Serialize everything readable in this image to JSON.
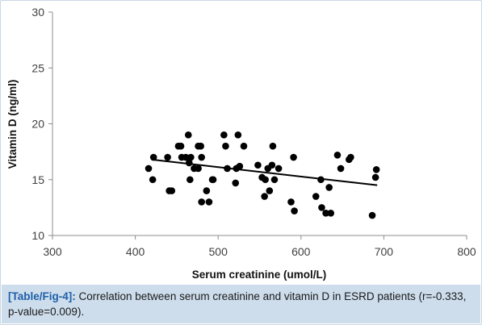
{
  "chart_data": {
    "type": "scatter",
    "xlabel": "Serum creatinine (umol/L)",
    "ylabel": "Vitamin D (ng/ml)",
    "xlim": [
      300,
      800
    ],
    "ylim": [
      10,
      30
    ],
    "x_ticks": [
      300,
      400,
      500,
      600,
      700,
      800
    ],
    "y_ticks": [
      10,
      15,
      20,
      25,
      30
    ],
    "grid": false,
    "legend": "none",
    "marker_color": "#000000",
    "trendline": {
      "type": "linear",
      "from": [
        420,
        16.8
      ],
      "to": [
        692,
        14.5
      ]
    },
    "points": [
      [
        416,
        16.0
      ],
      [
        421,
        15.0
      ],
      [
        422,
        17.0
      ],
      [
        439,
        17.0
      ],
      [
        441,
        14.0
      ],
      [
        444,
        14.0
      ],
      [
        452,
        18.0
      ],
      [
        455,
        18.0
      ],
      [
        456,
        17.0
      ],
      [
        461,
        17.0
      ],
      [
        464,
        19.0
      ],
      [
        465,
        16.5
      ],
      [
        466,
        15.0
      ],
      [
        467,
        17.0
      ],
      [
        471,
        16.0
      ],
      [
        476,
        18.0
      ],
      [
        476,
        16.0
      ],
      [
        479,
        18.0
      ],
      [
        480,
        17.0
      ],
      [
        480,
        13.0
      ],
      [
        486,
        14.0
      ],
      [
        489,
        13.0
      ],
      [
        493,
        15.0
      ],
      [
        494,
        15.0
      ],
      [
        507,
        19.0
      ],
      [
        509,
        18.0
      ],
      [
        511,
        16.0
      ],
      [
        521,
        14.7
      ],
      [
        522,
        16.0
      ],
      [
        524,
        19.0
      ],
      [
        526,
        16.2
      ],
      [
        531,
        18.0
      ],
      [
        548,
        16.3
      ],
      [
        553,
        15.2
      ],
      [
        556,
        13.5
      ],
      [
        557,
        15.0
      ],
      [
        560,
        16.0
      ],
      [
        562,
        14.0
      ],
      [
        565,
        16.3
      ],
      [
        566,
        18.0
      ],
      [
        568,
        15.0
      ],
      [
        573,
        16.0
      ],
      [
        588,
        13.0
      ],
      [
        591,
        17.0
      ],
      [
        592,
        12.2
      ],
      [
        618,
        13.5
      ],
      [
        624,
        15.0
      ],
      [
        625,
        12.5
      ],
      [
        630,
        12.0
      ],
      [
        634,
        14.3
      ],
      [
        636,
        12.0
      ],
      [
        644,
        17.2
      ],
      [
        648,
        16.0
      ],
      [
        658,
        16.8
      ],
      [
        660,
        17.0
      ],
      [
        686,
        11.8
      ],
      [
        690,
        15.2
      ],
      [
        691,
        15.9
      ]
    ]
  },
  "caption": {
    "tag": "[Table/Fig-4]:",
    "text": " Correlation between serum creatinine and vitamin D in ESRD patients (r=-0.333, p-value=0.009)."
  }
}
